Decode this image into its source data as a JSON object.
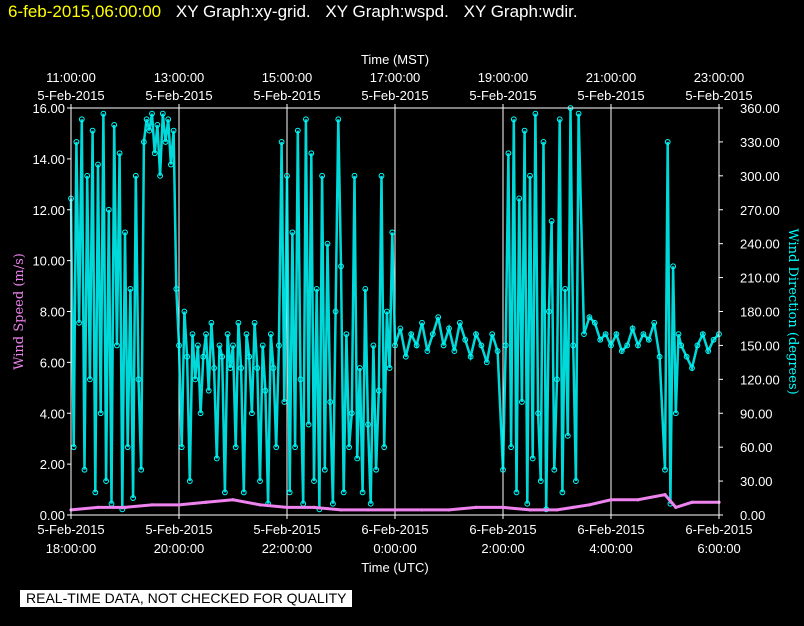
{
  "header": {
    "timestamp": "6-feb-2015,06:00:00",
    "graphs": [
      "XY Graph:xy-grid.",
      "XY Graph:wspd.",
      "XY Graph:wdir."
    ]
  },
  "notice": "REAL-TIME DATA, NOT CHECKED FOR QUALITY",
  "colors": {
    "wspd": "#ee82ee",
    "wdir": "#00ffff",
    "axis": "#ffffff",
    "background": "#000000",
    "header_time": "#ffff00"
  },
  "chart_data": {
    "type": "scatter",
    "top_axis": {
      "title": "Time (MST)",
      "ticks": [
        {
          "t": 0,
          "time": "11:00:00",
          "date": "5-Feb-2015"
        },
        {
          "t": 2,
          "time": "13:00:00",
          "date": "5-Feb-2015"
        },
        {
          "t": 4,
          "time": "15:00:00",
          "date": "5-Feb-2015"
        },
        {
          "t": 6,
          "time": "17:00:00",
          "date": "5-Feb-2015"
        },
        {
          "t": 8,
          "time": "19:00:00",
          "date": "5-Feb-2015"
        },
        {
          "t": 10,
          "time": "21:00:00",
          "date": "5-Feb-2015"
        },
        {
          "t": 12,
          "time": "23:00:00",
          "date": "5-Feb-2015"
        }
      ]
    },
    "bottom_axis": {
      "title": "Time (UTC)",
      "ticks": [
        {
          "t": 0,
          "date": "5-Feb-2015",
          "time": "18:00:00"
        },
        {
          "t": 2,
          "date": "5-Feb-2015",
          "time": "20:00:00"
        },
        {
          "t": 4,
          "date": "5-Feb-2015",
          "time": "22:00:00"
        },
        {
          "t": 6,
          "date": "6-Feb-2015",
          "time": "0:00:00"
        },
        {
          "t": 8,
          "date": "6-Feb-2015",
          "time": "2:00:00"
        },
        {
          "t": 10,
          "date": "6-Feb-2015",
          "time": "4:00:00"
        },
        {
          "t": 12,
          "date": "6-Feb-2015",
          "time": "6:00:00"
        }
      ]
    },
    "x_range_hours": [
      0,
      12
    ],
    "left_axis": {
      "title": "Wind Speed (m/s)",
      "range": [
        0,
        16
      ],
      "ticks": [
        "0.00",
        "2.00",
        "4.00",
        "6.00",
        "8.00",
        "10.00",
        "12.00",
        "14.00",
        "16.00"
      ]
    },
    "right_axis": {
      "title": "Wind Direction (degrees)",
      "range": [
        0,
        360
      ],
      "ticks": [
        "0.00",
        "30.00",
        "60.00",
        "90.00",
        "120.00",
        "150.00",
        "180.00",
        "210.00",
        "240.00",
        "270.00",
        "300.00",
        "330.00",
        "360.00"
      ]
    },
    "grid": "vertical",
    "series": [
      {
        "key": "wspd",
        "axis": "left",
        "points": [
          [
            0,
            0.2
          ],
          [
            0.5,
            0.3
          ],
          [
            1,
            0.3
          ],
          [
            1.5,
            0.4
          ],
          [
            2,
            0.4
          ],
          [
            2.5,
            0.5
          ],
          [
            3,
            0.6
          ],
          [
            3.5,
            0.4
          ],
          [
            4,
            0.3
          ],
          [
            4.5,
            0.3
          ],
          [
            5,
            0.2
          ],
          [
            5.5,
            0.2
          ],
          [
            6,
            0.2
          ],
          [
            6.5,
            0.2
          ],
          [
            7,
            0.2
          ],
          [
            7.5,
            0.3
          ],
          [
            8,
            0.3
          ],
          [
            8.5,
            0.2
          ],
          [
            9,
            0.2
          ],
          [
            9.3,
            0.3
          ],
          [
            9.6,
            0.4
          ],
          [
            10,
            0.6
          ],
          [
            10.5,
            0.6
          ],
          [
            11,
            0.8
          ],
          [
            11.2,
            0.3
          ],
          [
            11.5,
            0.5
          ],
          [
            12,
            0.5
          ]
        ]
      },
      {
        "key": "wdir",
        "axis": "right",
        "points": [
          [
            0,
            280
          ],
          [
            0.05,
            60
          ],
          [
            0.1,
            330
          ],
          [
            0.15,
            170
          ],
          [
            0.2,
            350
          ],
          [
            0.25,
            40
          ],
          [
            0.3,
            300
          ],
          [
            0.35,
            120
          ],
          [
            0.4,
            340
          ],
          [
            0.45,
            20
          ],
          [
            0.5,
            310
          ],
          [
            0.55,
            90
          ],
          [
            0.6,
            355
          ],
          [
            0.65,
            30
          ],
          [
            0.7,
            270
          ],
          [
            0.75,
            10
          ],
          [
            0.8,
            345
          ],
          [
            0.85,
            150
          ],
          [
            0.9,
            320
          ],
          [
            0.95,
            5
          ],
          [
            1,
            250
          ],
          [
            1.05,
            60
          ],
          [
            1.1,
            200
          ],
          [
            1.15,
            15
          ],
          [
            1.2,
            300
          ],
          [
            1.25,
            120
          ],
          [
            1.3,
            40
          ],
          [
            1.35,
            330
          ],
          [
            1.4,
            350
          ],
          [
            1.45,
            340
          ],
          [
            1.5,
            355
          ],
          [
            1.55,
            320
          ],
          [
            1.6,
            345
          ],
          [
            1.65,
            300
          ],
          [
            1.7,
            355
          ],
          [
            1.75,
            330
          ],
          [
            1.8,
            350
          ],
          [
            1.85,
            310
          ],
          [
            1.9,
            340
          ],
          [
            1.95,
            200
          ],
          [
            2,
            150
          ],
          [
            2.05,
            60
          ],
          [
            2.1,
            180
          ],
          [
            2.15,
            140
          ],
          [
            2.2,
            30
          ],
          [
            2.25,
            160
          ],
          [
            2.3,
            120
          ],
          [
            2.35,
            150
          ],
          [
            2.4,
            90
          ],
          [
            2.45,
            140
          ],
          [
            2.5,
            160
          ],
          [
            2.55,
            110
          ],
          [
            2.6,
            170
          ],
          [
            2.65,
            130
          ],
          [
            2.7,
            50
          ],
          [
            2.75,
            150
          ],
          [
            2.8,
            140
          ],
          [
            2.85,
            20
          ],
          [
            2.9,
            160
          ],
          [
            2.95,
            130
          ],
          [
            3,
            150
          ],
          [
            3.05,
            60
          ],
          [
            3.1,
            170
          ],
          [
            3.15,
            130
          ],
          [
            3.2,
            20
          ],
          [
            3.25,
            160
          ],
          [
            3.3,
            140
          ],
          [
            3.35,
            90
          ],
          [
            3.4,
            170
          ],
          [
            3.45,
            130
          ],
          [
            3.5,
            30
          ],
          [
            3.55,
            150
          ],
          [
            3.6,
            110
          ],
          [
            3.65,
            10
          ],
          [
            3.7,
            160
          ],
          [
            3.75,
            130
          ],
          [
            3.8,
            60
          ],
          [
            3.85,
            150
          ],
          [
            3.9,
            330
          ],
          [
            3.95,
            100
          ],
          [
            4,
            300
          ],
          [
            4.05,
            20
          ],
          [
            4.1,
            250
          ],
          [
            4.15,
            60
          ],
          [
            4.2,
            340
          ],
          [
            4.25,
            120
          ],
          [
            4.3,
            10
          ],
          [
            4.35,
            350
          ],
          [
            4.4,
            80
          ],
          [
            4.45,
            320
          ],
          [
            4.5,
            30
          ],
          [
            4.55,
            200
          ],
          [
            4.6,
            5
          ],
          [
            4.65,
            300
          ],
          [
            4.7,
            40
          ],
          [
            4.75,
            240
          ],
          [
            4.8,
            100
          ],
          [
            4.85,
            10
          ],
          [
            4.9,
            180
          ],
          [
            4.95,
            350
          ],
          [
            5,
            220
          ],
          [
            5.05,
            20
          ],
          [
            5.1,
            160
          ],
          [
            5.15,
            60
          ],
          [
            5.2,
            90
          ],
          [
            5.25,
            300
          ],
          [
            5.3,
            50
          ],
          [
            5.35,
            130
          ],
          [
            5.4,
            20
          ],
          [
            5.45,
            200
          ],
          [
            5.5,
            80
          ],
          [
            5.55,
            10
          ],
          [
            5.6,
            150
          ],
          [
            5.65,
            40
          ],
          [
            5.7,
            110
          ],
          [
            5.75,
            300
          ],
          [
            5.8,
            60
          ],
          [
            5.85,
            180
          ],
          [
            5.9,
            130
          ],
          [
            5.95,
            250
          ],
          [
            6,
            150
          ],
          [
            6.1,
            165
          ],
          [
            6.2,
            140
          ],
          [
            6.3,
            160
          ],
          [
            6.4,
            150
          ],
          [
            6.5,
            170
          ],
          [
            6.6,
            145
          ],
          [
            6.7,
            160
          ],
          [
            6.8,
            175
          ],
          [
            6.9,
            150
          ],
          [
            7,
            165
          ],
          [
            7.1,
            145
          ],
          [
            7.2,
            170
          ],
          [
            7.3,
            155
          ],
          [
            7.4,
            140
          ],
          [
            7.5,
            160
          ],
          [
            7.6,
            150
          ],
          [
            7.7,
            135
          ],
          [
            7.8,
            160
          ],
          [
            7.9,
            145
          ],
          [
            8,
            40
          ],
          [
            8.05,
            150
          ],
          [
            8.1,
            320
          ],
          [
            8.15,
            60
          ],
          [
            8.2,
            350
          ],
          [
            8.25,
            20
          ],
          [
            8.3,
            280
          ],
          [
            8.35,
            100
          ],
          [
            8.4,
            340
          ],
          [
            8.45,
            10
          ],
          [
            8.5,
            300
          ],
          [
            8.55,
            50
          ],
          [
            8.6,
            355
          ],
          [
            8.65,
            90
          ],
          [
            8.7,
            30
          ],
          [
            8.75,
            330
          ],
          [
            8.8,
            5
          ],
          [
            8.85,
            180
          ],
          [
            8.9,
            260
          ],
          [
            8.95,
            40
          ],
          [
            9,
            120
          ],
          [
            9.05,
            350
          ],
          [
            9.1,
            20
          ],
          [
            9.15,
            200
          ],
          [
            9.2,
            70
          ],
          [
            9.25,
            360
          ],
          [
            9.3,
            150
          ],
          [
            9.35,
            30
          ],
          [
            9.4,
            355
          ],
          [
            9.5,
            160
          ],
          [
            9.6,
            175
          ],
          [
            9.7,
            170
          ],
          [
            9.8,
            155
          ],
          [
            9.9,
            160
          ],
          [
            10,
            150
          ],
          [
            10.1,
            160
          ],
          [
            10.2,
            145
          ],
          [
            10.3,
            150
          ],
          [
            10.4,
            165
          ],
          [
            10.5,
            150
          ],
          [
            10.6,
            160
          ],
          [
            10.7,
            155
          ],
          [
            10.8,
            170
          ],
          [
            10.9,
            140
          ],
          [
            11,
            40
          ],
          [
            11.05,
            330
          ],
          [
            11.1,
            10
          ],
          [
            11.15,
            220
          ],
          [
            11.2,
            90
          ],
          [
            11.25,
            160
          ],
          [
            11.3,
            150
          ],
          [
            11.4,
            140
          ],
          [
            11.5,
            130
          ],
          [
            11.6,
            150
          ],
          [
            11.7,
            160
          ],
          [
            11.8,
            145
          ],
          [
            11.9,
            155
          ],
          [
            12,
            160
          ]
        ]
      }
    ]
  }
}
